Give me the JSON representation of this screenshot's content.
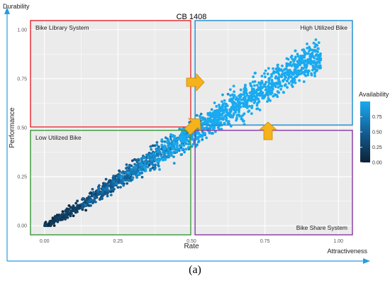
{
  "chart_data": {
    "type": "scatter",
    "title": "CB 1408",
    "xlabel": "Rate",
    "ylabel": "Performance",
    "outer_axis_labels": {
      "y": "Durability",
      "x": "Attractiveness"
    },
    "xlim": [
      -0.05,
      1.05
    ],
    "ylim": [
      -0.05,
      1.05
    ],
    "x_ticks": [
      "0.00",
      "0.25",
      "0.50",
      "0.75",
      "1.00"
    ],
    "y_ticks": [
      "0.00",
      "0.25",
      "0.50",
      "0.75",
      "1.00"
    ],
    "grid": true,
    "color_scale": {
      "title": "Availability",
      "ticks": [
        "0.75",
        "0.50",
        "0.25",
        "0.00"
      ],
      "range": [
        0,
        1
      ],
      "low_color": "#0d2236",
      "high_color": "#1aaaf0"
    },
    "point_cloud": {
      "trend": [
        [
          0.0,
          0.0
        ],
        [
          0.1,
          0.08
        ],
        [
          0.25,
          0.23
        ],
        [
          0.5,
          0.47
        ],
        [
          0.75,
          0.7
        ],
        [
          0.9,
          0.85
        ]
      ],
      "x_range": [
        0.0,
        0.94
      ],
      "color": "Availability increases with Rate"
    },
    "quadrants": [
      {
        "label": "Bike Library System",
        "color": "#e8272e",
        "x": [
          -0.05,
          0.5
        ],
        "y": [
          0.5,
          1.05
        ]
      },
      {
        "label": "High Utilized Bike",
        "color": "#1b8fd6",
        "x": [
          0.51,
          1.05
        ],
        "y": [
          0.51,
          1.05
        ]
      },
      {
        "label": "Low Utilized Bike",
        "color": "#3a9a3a",
        "x": [
          -0.05,
          0.5
        ],
        "y": [
          -0.05,
          0.49
        ]
      },
      {
        "label": "Bike Share System",
        "color": "#8a3aa6",
        "x": [
          0.51,
          1.05
        ],
        "y": [
          -0.05,
          0.49
        ]
      }
    ],
    "arrow_color": "#f5b21a"
  },
  "caption": "(a)"
}
